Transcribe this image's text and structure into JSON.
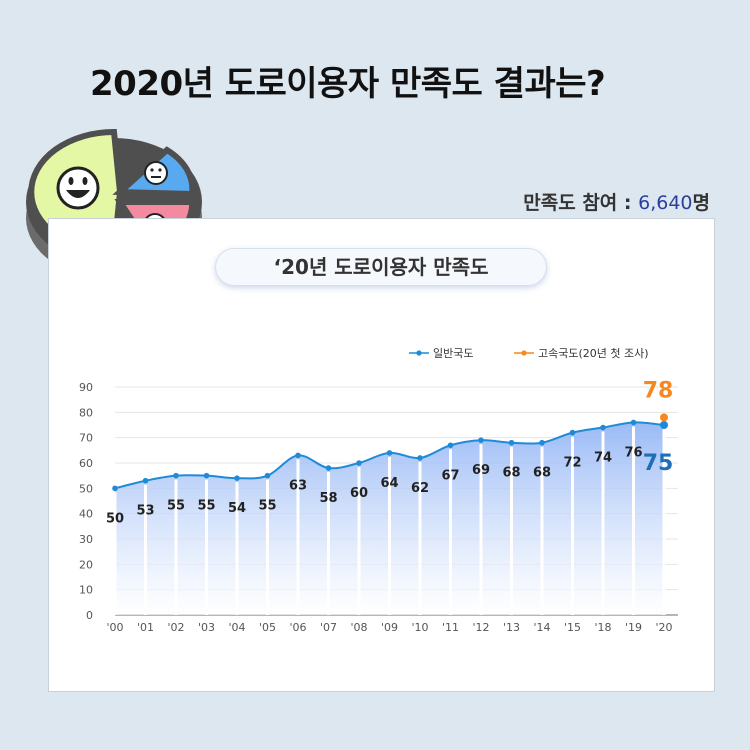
{
  "headline": "2020년 도로이용자 만족도 결과는?",
  "participation": {
    "label": "만족도 참여 : ",
    "count": "6,640",
    "unit": "명"
  },
  "pill_title": "‘20년 도로이용자 만족도",
  "colors": {
    "general": "#1f8ad8",
    "highway": "#f5891f",
    "callout_general": "#1f6fb8"
  },
  "icons": [
    "happy-face-icon",
    "neutral-face-icon",
    "sad-face-icon"
  ],
  "chart_data": {
    "type": "line",
    "x": [
      "'00",
      "'01",
      "'02",
      "'03",
      "'04",
      "'05",
      "'06",
      "'07",
      "'08",
      "'09",
      "'10",
      "'11",
      "'12",
      "'13",
      "'14",
      "'15",
      "'18",
      "'19",
      "'20"
    ],
    "series": [
      {
        "name": "일반국도",
        "values": [
          50,
          53,
          55,
          55,
          54,
          55,
          63,
          58,
          60,
          64,
          62,
          67,
          69,
          68,
          68,
          72,
          74,
          76,
          75
        ]
      },
      {
        "name": "고속국도(20년 첫 조사)",
        "values": [
          null,
          null,
          null,
          null,
          null,
          null,
          null,
          null,
          null,
          null,
          null,
          null,
          null,
          null,
          null,
          null,
          null,
          null,
          78
        ]
      }
    ],
    "ylim": [
      0,
      90
    ],
    "yticks": [
      0,
      10,
      20,
      30,
      40,
      50,
      60,
      70,
      80,
      90
    ],
    "grid": true,
    "legend": "top-right",
    "area_fill": true
  }
}
